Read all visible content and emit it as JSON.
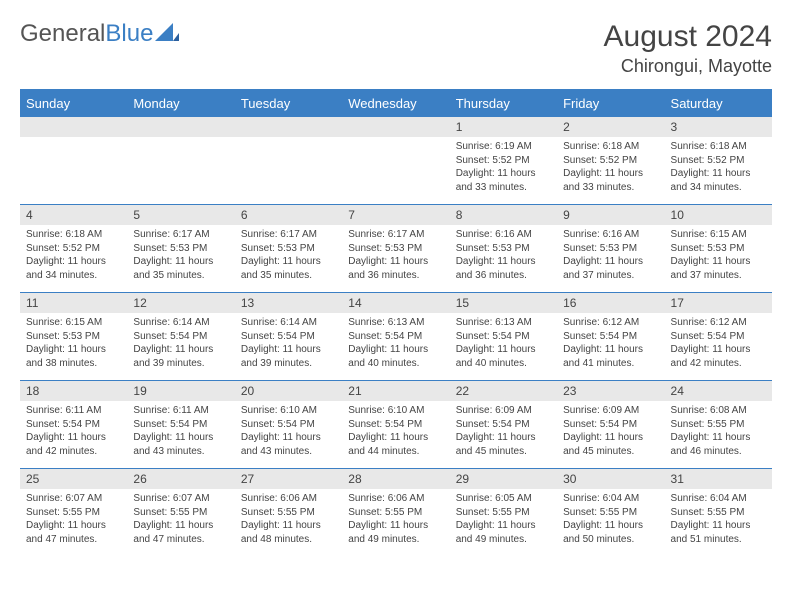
{
  "logo": {
    "part1": "General",
    "part2": "Blue"
  },
  "title": "August 2024",
  "location": "Chirongui, Mayotte",
  "colors": {
    "header_bg": "#3b7fc4",
    "daynum_bg": "#e8e8e8",
    "text": "#444444"
  },
  "day_headers": [
    "Sunday",
    "Monday",
    "Tuesday",
    "Wednesday",
    "Thursday",
    "Friday",
    "Saturday"
  ],
  "weeks": [
    [
      {
        "blank": true
      },
      {
        "blank": true
      },
      {
        "blank": true
      },
      {
        "blank": true
      },
      {
        "num": "1",
        "sunrise": "Sunrise: 6:19 AM",
        "sunset": "Sunset: 5:52 PM",
        "daylight": "Daylight: 11 hours and 33 minutes."
      },
      {
        "num": "2",
        "sunrise": "Sunrise: 6:18 AM",
        "sunset": "Sunset: 5:52 PM",
        "daylight": "Daylight: 11 hours and 33 minutes."
      },
      {
        "num": "3",
        "sunrise": "Sunrise: 6:18 AM",
        "sunset": "Sunset: 5:52 PM",
        "daylight": "Daylight: 11 hours and 34 minutes."
      }
    ],
    [
      {
        "num": "4",
        "sunrise": "Sunrise: 6:18 AM",
        "sunset": "Sunset: 5:52 PM",
        "daylight": "Daylight: 11 hours and 34 minutes."
      },
      {
        "num": "5",
        "sunrise": "Sunrise: 6:17 AM",
        "sunset": "Sunset: 5:53 PM",
        "daylight": "Daylight: 11 hours and 35 minutes."
      },
      {
        "num": "6",
        "sunrise": "Sunrise: 6:17 AM",
        "sunset": "Sunset: 5:53 PM",
        "daylight": "Daylight: 11 hours and 35 minutes."
      },
      {
        "num": "7",
        "sunrise": "Sunrise: 6:17 AM",
        "sunset": "Sunset: 5:53 PM",
        "daylight": "Daylight: 11 hours and 36 minutes."
      },
      {
        "num": "8",
        "sunrise": "Sunrise: 6:16 AM",
        "sunset": "Sunset: 5:53 PM",
        "daylight": "Daylight: 11 hours and 36 minutes."
      },
      {
        "num": "9",
        "sunrise": "Sunrise: 6:16 AM",
        "sunset": "Sunset: 5:53 PM",
        "daylight": "Daylight: 11 hours and 37 minutes."
      },
      {
        "num": "10",
        "sunrise": "Sunrise: 6:15 AM",
        "sunset": "Sunset: 5:53 PM",
        "daylight": "Daylight: 11 hours and 37 minutes."
      }
    ],
    [
      {
        "num": "11",
        "sunrise": "Sunrise: 6:15 AM",
        "sunset": "Sunset: 5:53 PM",
        "daylight": "Daylight: 11 hours and 38 minutes."
      },
      {
        "num": "12",
        "sunrise": "Sunrise: 6:14 AM",
        "sunset": "Sunset: 5:54 PM",
        "daylight": "Daylight: 11 hours and 39 minutes."
      },
      {
        "num": "13",
        "sunrise": "Sunrise: 6:14 AM",
        "sunset": "Sunset: 5:54 PM",
        "daylight": "Daylight: 11 hours and 39 minutes."
      },
      {
        "num": "14",
        "sunrise": "Sunrise: 6:13 AM",
        "sunset": "Sunset: 5:54 PM",
        "daylight": "Daylight: 11 hours and 40 minutes."
      },
      {
        "num": "15",
        "sunrise": "Sunrise: 6:13 AM",
        "sunset": "Sunset: 5:54 PM",
        "daylight": "Daylight: 11 hours and 40 minutes."
      },
      {
        "num": "16",
        "sunrise": "Sunrise: 6:12 AM",
        "sunset": "Sunset: 5:54 PM",
        "daylight": "Daylight: 11 hours and 41 minutes."
      },
      {
        "num": "17",
        "sunrise": "Sunrise: 6:12 AM",
        "sunset": "Sunset: 5:54 PM",
        "daylight": "Daylight: 11 hours and 42 minutes."
      }
    ],
    [
      {
        "num": "18",
        "sunrise": "Sunrise: 6:11 AM",
        "sunset": "Sunset: 5:54 PM",
        "daylight": "Daylight: 11 hours and 42 minutes."
      },
      {
        "num": "19",
        "sunrise": "Sunrise: 6:11 AM",
        "sunset": "Sunset: 5:54 PM",
        "daylight": "Daylight: 11 hours and 43 minutes."
      },
      {
        "num": "20",
        "sunrise": "Sunrise: 6:10 AM",
        "sunset": "Sunset: 5:54 PM",
        "daylight": "Daylight: 11 hours and 43 minutes."
      },
      {
        "num": "21",
        "sunrise": "Sunrise: 6:10 AM",
        "sunset": "Sunset: 5:54 PM",
        "daylight": "Daylight: 11 hours and 44 minutes."
      },
      {
        "num": "22",
        "sunrise": "Sunrise: 6:09 AM",
        "sunset": "Sunset: 5:54 PM",
        "daylight": "Daylight: 11 hours and 45 minutes."
      },
      {
        "num": "23",
        "sunrise": "Sunrise: 6:09 AM",
        "sunset": "Sunset: 5:54 PM",
        "daylight": "Daylight: 11 hours and 45 minutes."
      },
      {
        "num": "24",
        "sunrise": "Sunrise: 6:08 AM",
        "sunset": "Sunset: 5:55 PM",
        "daylight": "Daylight: 11 hours and 46 minutes."
      }
    ],
    [
      {
        "num": "25",
        "sunrise": "Sunrise: 6:07 AM",
        "sunset": "Sunset: 5:55 PM",
        "daylight": "Daylight: 11 hours and 47 minutes."
      },
      {
        "num": "26",
        "sunrise": "Sunrise: 6:07 AM",
        "sunset": "Sunset: 5:55 PM",
        "daylight": "Daylight: 11 hours and 47 minutes."
      },
      {
        "num": "27",
        "sunrise": "Sunrise: 6:06 AM",
        "sunset": "Sunset: 5:55 PM",
        "daylight": "Daylight: 11 hours and 48 minutes."
      },
      {
        "num": "28",
        "sunrise": "Sunrise: 6:06 AM",
        "sunset": "Sunset: 5:55 PM",
        "daylight": "Daylight: 11 hours and 49 minutes."
      },
      {
        "num": "29",
        "sunrise": "Sunrise: 6:05 AM",
        "sunset": "Sunset: 5:55 PM",
        "daylight": "Daylight: 11 hours and 49 minutes."
      },
      {
        "num": "30",
        "sunrise": "Sunrise: 6:04 AM",
        "sunset": "Sunset: 5:55 PM",
        "daylight": "Daylight: 11 hours and 50 minutes."
      },
      {
        "num": "31",
        "sunrise": "Sunrise: 6:04 AM",
        "sunset": "Sunset: 5:55 PM",
        "daylight": "Daylight: 11 hours and 51 minutes."
      }
    ]
  ]
}
